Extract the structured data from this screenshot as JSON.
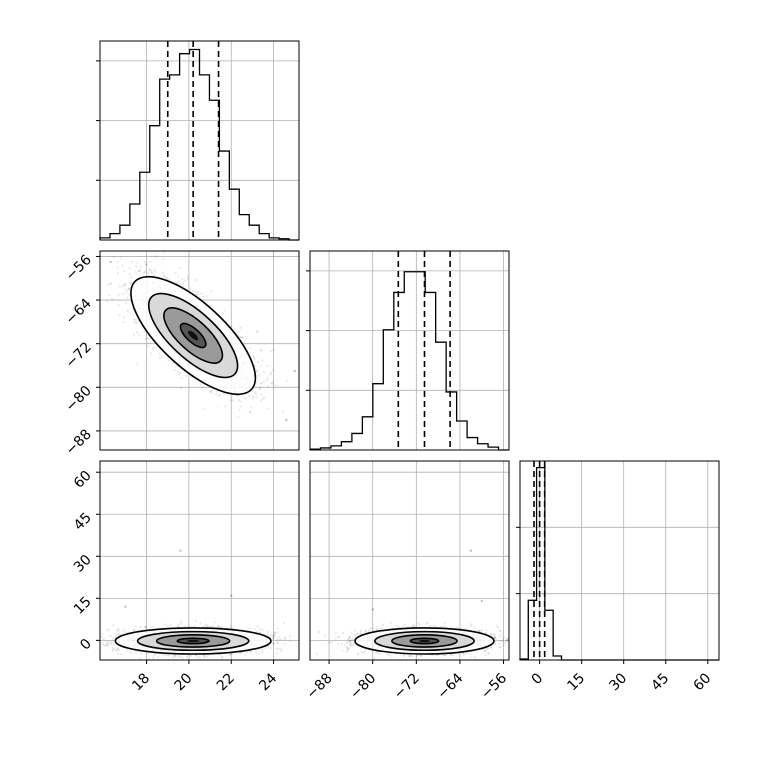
{
  "chart_data": {
    "type": "corner",
    "grid": true,
    "parameters": [
      {
        "ticks": [
          18,
          20,
          22,
          24
        ],
        "ticklabels": [
          "18",
          "20",
          "22",
          "24"
        ],
        "range": [
          15.8,
          25.2
        ],
        "quantiles": [
          19.0,
          20.2,
          21.4
        ],
        "hist": [
          0.5,
          1.5,
          3.5,
          8.5,
          16,
          27,
          38,
          39,
          44,
          45,
          39,
          33,
          21,
          12,
          6,
          3.5,
          1.5,
          0.5,
          0.3,
          0
        ],
        "histmax": 47
      },
      {
        "ticks": [
          -88,
          -80,
          -72,
          -64,
          -56
        ],
        "ticklabels": [
          "−88",
          "−80",
          "−72",
          "−64",
          "−56"
        ],
        "range": [
          -91.5,
          -55
        ],
        "quantiles": [
          -75.3,
          -70.5,
          -65.8
        ],
        "hist": [
          0.2,
          0.5,
          1,
          2,
          4,
          8,
          16,
          29,
          38,
          43,
          43,
          38,
          26,
          14,
          7,
          3,
          1.5,
          0.7,
          0
        ],
        "histmax": 48
      },
      {
        "ticks": [
          0,
          15,
          30,
          45,
          60
        ],
        "ticklabels": [
          "0",
          "15",
          "30",
          "45",
          "60"
        ],
        "range": [
          -7,
          64
        ],
        "quantiles": [
          -2.0,
          0.0,
          1.8
        ],
        "hist": [
          0.3,
          18,
          58,
          15,
          1.2,
          0,
          0,
          0,
          0,
          0,
          0,
          0,
          0,
          0,
          0,
          0,
          0,
          0,
          0,
          0,
          0,
          0,
          0,
          0
        ],
        "histmax": 60,
        "hist_ticks": [
          0,
          20,
          40
        ]
      }
    ],
    "pairs": [
      {
        "name": "p1-vs-p0",
        "mean": [
          20.2,
          -70.5
        ],
        "sd": [
          1.2,
          4.4
        ],
        "corr": -0.72,
        "outliers": [
          [
            24.6,
            -86
          ],
          [
            16.3,
            -57
          ],
          [
            25,
            -77
          ]
        ]
      },
      {
        "name": "p2-vs-p0",
        "mean": [
          20.2,
          -0.2
        ],
        "sd": [
          1.5,
          1.9
        ],
        "corr": 0.0,
        "outliers": [
          [
            19.6,
            32
          ],
          [
            22,
            16
          ],
          [
            17,
            12
          ]
        ]
      },
      {
        "name": "p2-vs-p1",
        "mean": [
          -70.5,
          -0.2
        ],
        "sd": [
          5.2,
          1.9
        ],
        "corr": 0.0,
        "outliers": [
          [
            -62,
            32
          ],
          [
            -60,
            14
          ],
          [
            -80,
            11
          ]
        ]
      }
    ]
  }
}
